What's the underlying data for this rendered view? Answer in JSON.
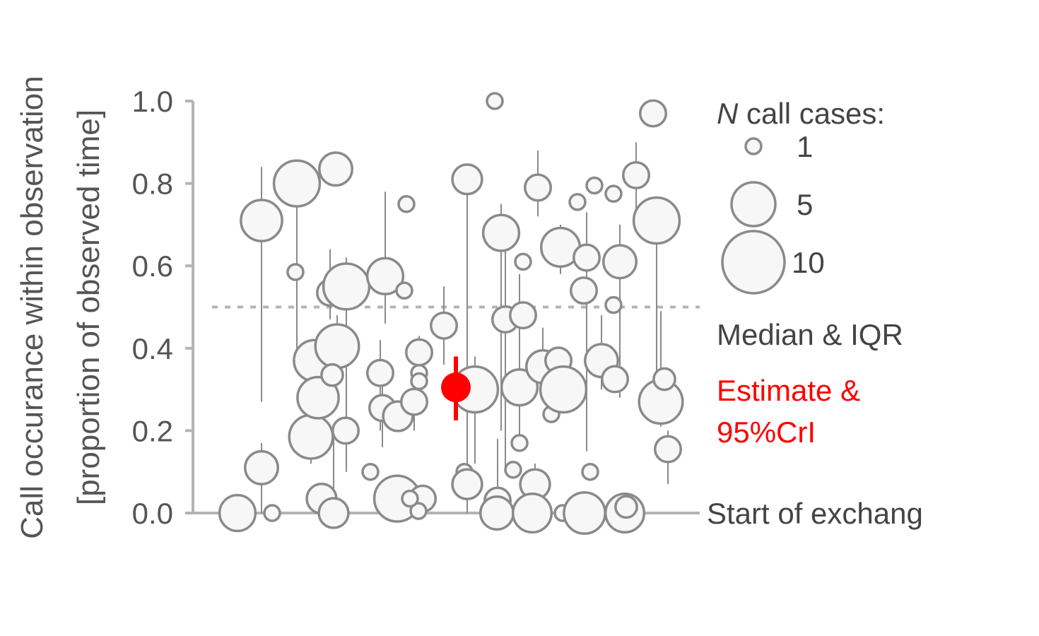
{
  "chart_data": {
    "type": "scatter",
    "y_label_line1": "Call occurance within observation",
    "y_label_line2": "[proportion of observed time]",
    "ylim": [
      0,
      1.0
    ],
    "y_ticks": [
      "0.0",
      "0.2",
      "0.4",
      "0.6",
      "0.8",
      "1.0"
    ],
    "reference_line": 0.5,
    "x_category_label": "Start of exchang",
    "legend": {
      "title_italic": "N",
      "title_rest": " call cases:",
      "sizes": [
        {
          "label": "1",
          "n": 1
        },
        {
          "label": "5",
          "n": 5
        },
        {
          "label": "10",
          "n": 10
        }
      ]
    },
    "median_iqr_label": "Median & IQR",
    "estimate_label_line1": "Estimate &",
    "estimate_label_line2": "95%CrI",
    "estimate": {
      "value": 0.305,
      "lower": 0.225,
      "upper": 0.38
    },
    "colors": {
      "point_fill": "#f7f7f7",
      "point_stroke": "#8a8a8a",
      "estimate": "#ff0000",
      "axis": "#b4b4b4",
      "reference": "#b4b4b4"
    },
    "points": [
      {
        "id": 1,
        "y": 0.0,
        "n": 6
      },
      {
        "id": 2,
        "y": 0.11,
        "n": 5,
        "q1": 0.0,
        "q3": 0.17
      },
      {
        "id": 3,
        "y": 0.71,
        "n": 8,
        "q1": 0.27,
        "q3": 0.84
      },
      {
        "id": 4,
        "y": 0.0,
        "n": 1
      },
      {
        "id": 5,
        "y": 0.8,
        "n": 10,
        "q1": 0.35,
        "q3": 0.81
      },
      {
        "id": 6,
        "y": 0.585,
        "n": 1
      },
      {
        "id": 7,
        "y": 0.185,
        "n": 9,
        "q1": 0.12,
        "q3": 0.38
      },
      {
        "id": 8,
        "y": 0.37,
        "n": 8,
        "q1": 0.3,
        "q3": 0.42
      },
      {
        "id": 9,
        "y": 0.28,
        "n": 8,
        "q1": 0.22,
        "q3": 0.33
      },
      {
        "id": 10,
        "y": 0.035,
        "n": 4
      },
      {
        "id": 11,
        "y": 0.535,
        "n": 3,
        "q1": 0.47,
        "q3": 0.64
      },
      {
        "id": 12,
        "y": 0.405,
        "n": 9,
        "q1": 0.32,
        "q3": 0.48
      },
      {
        "id": 13,
        "y": 0.835,
        "n": 5
      },
      {
        "id": 14,
        "y": 0.55,
        "n": 10,
        "q1": 0.1,
        "q3": 0.62
      },
      {
        "id": 15,
        "y": 0.0,
        "n": 4,
        "q1": 0.0,
        "q3": 0.18
      },
      {
        "id": 16,
        "y": 0.2,
        "n": 3
      },
      {
        "id": 17,
        "y": 0.335,
        "n": 2
      },
      {
        "id": 18,
        "y": 0.1,
        "n": 1
      },
      {
        "id": 19,
        "y": 0.575,
        "n": 6,
        "q1": 0.46,
        "q3": 0.78
      },
      {
        "id": 20,
        "y": 0.34,
        "n": 3,
        "q1": 0.2,
        "q3": 0.42
      },
      {
        "id": 21,
        "y": 0.255,
        "n": 3,
        "q1": 0.16,
        "q3": 0.35
      },
      {
        "id": 22,
        "y": 0.235,
        "n": 4
      },
      {
        "id": 23,
        "y": 0.035,
        "n": 10
      },
      {
        "id": 24,
        "y": 0.75,
        "n": 1
      },
      {
        "id": 25,
        "y": 0.54,
        "n": 1
      },
      {
        "id": 26,
        "y": 0.27,
        "n": 3,
        "q1": 0.2,
        "q3": 0.34
      },
      {
        "id": 27,
        "y": 0.39,
        "n": 3,
        "q1": 0.3,
        "q3": 0.43
      },
      {
        "id": 28,
        "y": 0.34,
        "n": 1
      },
      {
        "id": 29,
        "y": 0.32,
        "n": 1
      },
      {
        "id": 30,
        "y": 0.035,
        "n": 3
      },
      {
        "id": 31,
        "y": 0.005,
        "n": 1
      },
      {
        "id": 32,
        "y": 0.035,
        "n": 1
      },
      {
        "id": 33,
        "y": 0.455,
        "n": 3,
        "q1": 0.36,
        "q3": 0.55
      },
      {
        "id": 34,
        "y": 0.81,
        "n": 4,
        "q1": 0.15,
        "q3": 0.78
      },
      {
        "id": 35,
        "y": 0.3,
        "n": 10,
        "q1": 0.12,
        "q3": 0.38
      },
      {
        "id": 36,
        "y": 0.1,
        "n": 1
      },
      {
        "id": 37,
        "y": 0.07,
        "n": 4,
        "q1": 0.0,
        "q3": 0.2
      },
      {
        "id": 38,
        "y": 1.0,
        "n": 1
      },
      {
        "id": 39,
        "y": 0.03,
        "n": 3,
        "q1": 0.0,
        "q3": 0.18
      },
      {
        "id": 40,
        "y": 0.68,
        "n": 6,
        "q1": 0.2,
        "q3": 0.75
      },
      {
        "id": 41,
        "y": 0.0,
        "n": 5
      },
      {
        "id": 42,
        "y": 0.47,
        "n": 3,
        "q1": 0.1,
        "q3": 0.69
      },
      {
        "id": 43,
        "y": 0.105,
        "n": 1
      },
      {
        "id": 44,
        "y": 0.61,
        "n": 1
      },
      {
        "id": 45,
        "y": 0.48,
        "n": 3
      },
      {
        "id": 46,
        "y": 0.305,
        "n": 6,
        "q1": 0.17,
        "q3": 0.58
      },
      {
        "id": 47,
        "y": 0.17,
        "n": 1
      },
      {
        "id": 48,
        "y": 0.07,
        "n": 4,
        "q1": 0.0,
        "q3": 0.12
      },
      {
        "id": 49,
        "y": 0.0,
        "n": 7
      },
      {
        "id": 50,
        "y": 0.79,
        "n": 3,
        "q1": 0.72,
        "q3": 0.88
      },
      {
        "id": 51,
        "y": 0.355,
        "n": 5,
        "q1": 0.3,
        "q3": 0.45
      },
      {
        "id": 52,
        "y": 0.37,
        "n": 3
      },
      {
        "id": 53,
        "y": 0.24,
        "n": 1
      },
      {
        "id": 54,
        "y": 0.3,
        "n": 10,
        "q1": 0.25,
        "q3": 0.35
      },
      {
        "id": 55,
        "y": 0.645,
        "n": 7,
        "q1": 0.58,
        "q3": 0.7
      },
      {
        "id": 56,
        "y": 0.0,
        "n": 1
      },
      {
        "id": 57,
        "y": 0.755,
        "n": 1
      },
      {
        "id": 58,
        "y": 0.62,
        "n": 3,
        "q1": 0.15,
        "q3": 0.73
      },
      {
        "id": 59,
        "y": 0.54,
        "n": 3
      },
      {
        "id": 60,
        "y": 0.0,
        "n": 8
      },
      {
        "id": 61,
        "y": 0.795,
        "n": 1
      },
      {
        "id": 62,
        "y": 0.1,
        "n": 1
      },
      {
        "id": 63,
        "y": 0.37,
        "n": 5,
        "q1": 0.3,
        "q3": 0.48
      },
      {
        "id": 64,
        "y": 0.775,
        "n": 1
      },
      {
        "id": 65,
        "y": 0.505,
        "n": 1
      },
      {
        "id": 66,
        "y": 0.61,
        "n": 5,
        "q1": 0.28,
        "q3": 0.7
      },
      {
        "id": 67,
        "y": 0.325,
        "n": 3
      },
      {
        "id": 68,
        "y": 0.0,
        "n": 7
      },
      {
        "id": 69,
        "y": 0.015,
        "n": 2
      },
      {
        "id": 70,
        "y": 0.82,
        "n": 3,
        "q1": 0.72,
        "q3": 0.9
      },
      {
        "id": 71,
        "y": 0.97,
        "n": 3
      },
      {
        "id": 72,
        "y": 0.71,
        "n": 10,
        "q1": 0.3,
        "q3": 0.71
      },
      {
        "id": 73,
        "y": 0.27,
        "n": 9,
        "q1": 0.21,
        "q3": 0.49
      },
      {
        "id": 74,
        "y": 0.325,
        "n": 2
      },
      {
        "id": 75,
        "y": 0.155,
        "n": 3,
        "q1": 0.07,
        "q3": 0.2
      }
    ]
  }
}
